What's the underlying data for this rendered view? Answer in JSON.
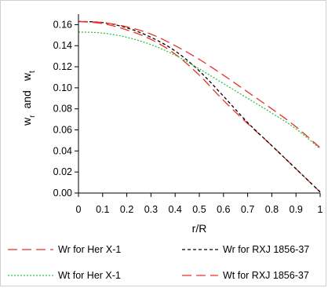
{
  "chart_data": {
    "type": "line",
    "xlabel": "r/R",
    "ylabel": {
      "w": "w",
      "r_sub": "r",
      "and": "and",
      "t_sub": "t"
    },
    "xlim": [
      0,
      1
    ],
    "ylim": [
      0,
      0.17
    ],
    "x_ticks": [
      "0",
      "0.1",
      "0.2",
      "0.3",
      "0.4",
      "0.5",
      "0.6",
      "0.7",
      "0.8",
      "0.9",
      "1"
    ],
    "y_ticks": [
      "0.00",
      "0.02",
      "0.04",
      "0.06",
      "0.08",
      "0.10",
      "0.12",
      "0.14",
      "0.16"
    ],
    "grid": false,
    "legend_position": "bottom",
    "x": [
      0,
      0.1,
      0.2,
      0.3,
      0.4,
      0.5,
      0.6,
      0.7,
      0.8,
      0.9,
      1.0
    ],
    "series": [
      {
        "name": "Wr for Her X-1",
        "color": "#e8302a",
        "dash": "longdash",
        "values": [
          0.163,
          0.161,
          0.155,
          0.146,
          0.132,
          0.112,
          0.088,
          0.066,
          0.045,
          0.023,
          0.001
        ]
      },
      {
        "name": "Wr for RXJ 1856-37",
        "color": "#000000",
        "dash": "shortdash",
        "values": [
          0.163,
          0.162,
          0.157,
          0.148,
          0.135,
          0.116,
          0.092,
          0.067,
          0.045,
          0.023,
          0.001
        ]
      },
      {
        "name": "Wt for Her X-1",
        "color": "#2ec44a",
        "dash": "dotted",
        "values": [
          0.153,
          0.152,
          0.148,
          0.141,
          0.131,
          0.118,
          0.104,
          0.09,
          0.076,
          0.061,
          0.042
        ]
      },
      {
        "name": "Wt for RXJ 1856-37",
        "color": "#e8302a",
        "dash": "longdash",
        "values": [
          0.163,
          0.162,
          0.158,
          0.151,
          0.14,
          0.127,
          0.112,
          0.096,
          0.08,
          0.063,
          0.043
        ]
      }
    ]
  }
}
